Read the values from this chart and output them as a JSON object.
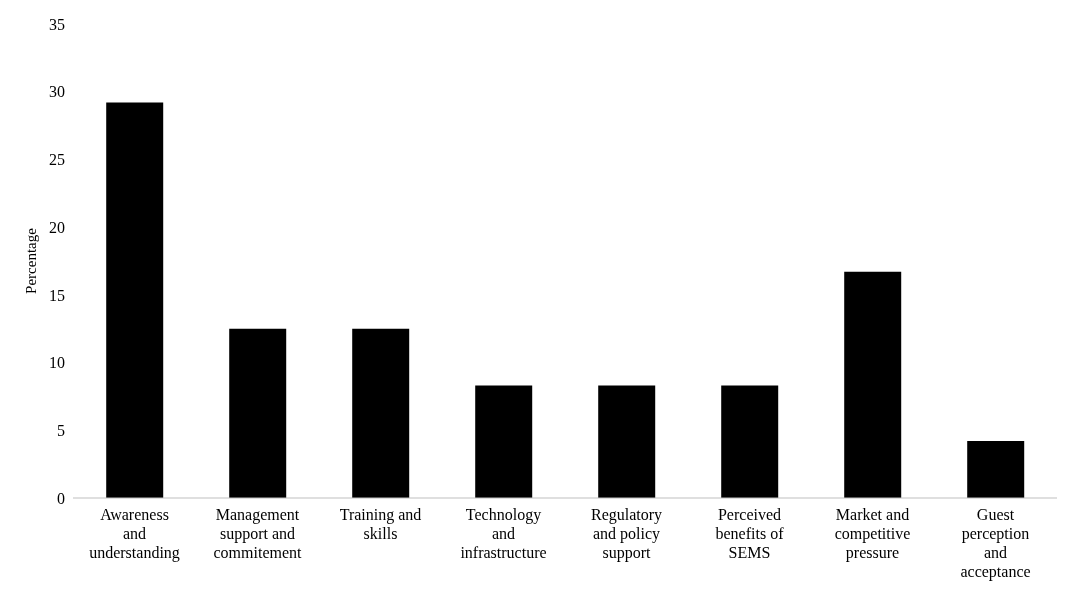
{
  "chart_data": {
    "type": "bar",
    "ylabel": "Percentage",
    "categories": [
      "Awareness and understanding",
      "Management support and commitement",
      "Training and skills",
      "Technology and infrastructure",
      "Regulatory and policy support",
      "Perceived benefits of SEMS",
      "Market and competitive pressure",
      "Guest perception and acceptance"
    ],
    "values": [
      29.2,
      12.5,
      12.5,
      8.3,
      8.3,
      8.3,
      16.7,
      4.2
    ],
    "color": "#000000",
    "ylim": [
      0,
      35
    ],
    "yticks": [
      0,
      5,
      10,
      15,
      20,
      25,
      30,
      35
    ],
    "grid": false,
    "legend": false
  }
}
